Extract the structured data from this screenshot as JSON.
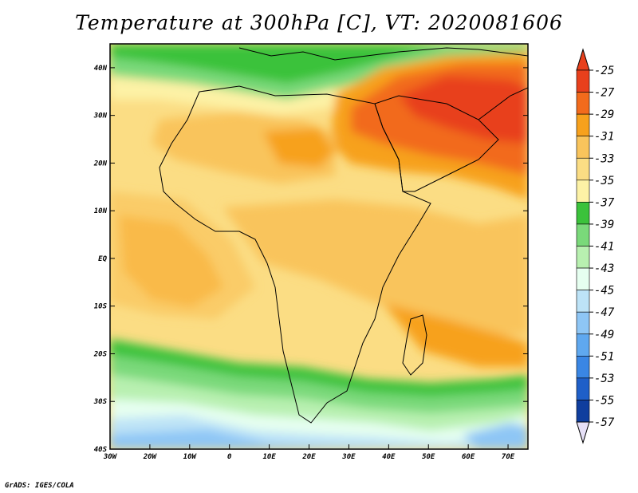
{
  "title": "Temperature at 300hPa [C], VT: 2020081606",
  "credit": "GrADS: IGES/COLA",
  "map": {
    "lon_range": [
      -30,
      75
    ],
    "lat_range": [
      -40,
      45
    ],
    "x_ticks": [
      "30W",
      "20W",
      "10W",
      "0",
      "10E",
      "20E",
      "30E",
      "40E",
      "50E",
      "60E",
      "70E"
    ],
    "x_tick_values": [
      -30,
      -20,
      -10,
      0,
      10,
      20,
      30,
      40,
      50,
      60,
      70
    ],
    "y_ticks": [
      "40N",
      "30N",
      "20N",
      "10N",
      "EQ",
      "10S",
      "20S",
      "30S",
      "40S"
    ],
    "y_tick_values": [
      40,
      30,
      20,
      10,
      0,
      -10,
      -20,
      -30,
      -40
    ]
  },
  "colorbar": {
    "labels": [
      "-25",
      "-27",
      "-29",
      "-31",
      "-33",
      "-35",
      "-37",
      "-39",
      "-41",
      "-43",
      "-45",
      "-47",
      "-49",
      "-51",
      "-53",
      "-55",
      "-57"
    ],
    "colors": [
      "#e8401c",
      "#f26b1c",
      "#f7a11c",
      "#f9c45c",
      "#fbdd84",
      "#fdf2a6",
      "#3bc23b",
      "#7ad97a",
      "#b8f0b0",
      "#e6fff0",
      "#bde3f7",
      "#8ec6f5",
      "#5fa8ef",
      "#3a86e4",
      "#1f5fc8",
      "#0f3e9e",
      "#0a1f6e"
    ],
    "over_color": "#e8401c",
    "under_color": "#e6e0f7"
  }
}
